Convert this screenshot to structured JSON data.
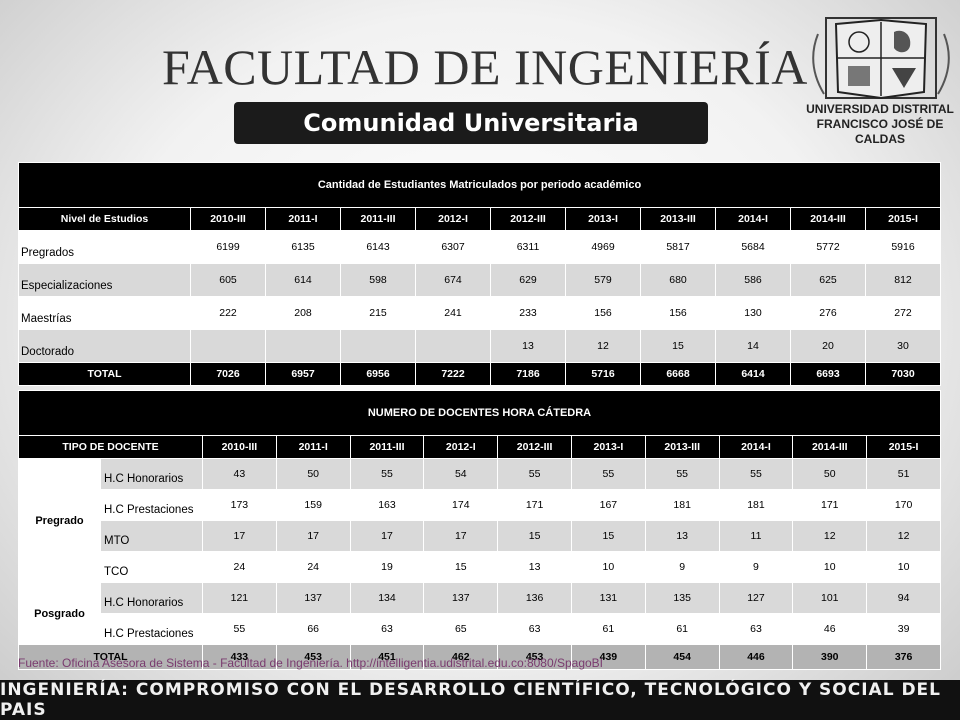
{
  "header": {
    "title": "FACULTAD DE INGENIERÍA",
    "subtitle": "Comunidad Universitaria",
    "logo_line1": "UNIVERSIDAD DISTRITAL",
    "logo_line2": "FRANCISCO JOSÉ DE CALDAS"
  },
  "table1": {
    "caption": "Cantidad de Estudiantes Matriculados por periodo académico",
    "corner_label": "Nivel de Estudios",
    "columns": [
      "2010-III",
      "2011-I",
      "2011-III",
      "2012-I",
      "2012-III",
      "2013-I",
      "2013-III",
      "2014-I",
      "2014-III",
      "2015-I"
    ],
    "rows": [
      {
        "label": "Pregrados",
        "values": [
          "6199",
          "6135",
          "6143",
          "6307",
          "6311",
          "4969",
          "5817",
          "5684",
          "5772",
          "5916"
        ]
      },
      {
        "label": "Especializaciones",
        "values": [
          "605",
          "614",
          "598",
          "674",
          "629",
          "579",
          "680",
          "586",
          "625",
          "812"
        ]
      },
      {
        "label": "Maestrías",
        "values": [
          "222",
          "208",
          "215",
          "241",
          "233",
          "156",
          "156",
          "130",
          "276",
          "272"
        ]
      },
      {
        "label": "Doctorado",
        "values": [
          "",
          "",
          "",
          "",
          "13",
          "12",
          "15",
          "14",
          "20",
          "30"
        ]
      }
    ],
    "total": {
      "label": "TOTAL",
      "values": [
        "7026",
        "6957",
        "6956",
        "7222",
        "7186",
        "5716",
        "6668",
        "6414",
        "6693",
        "7030"
      ]
    }
  },
  "table2": {
    "caption": "NUMERO DE DOCENTES HORA CÁTEDRA",
    "corner_label": "TIPO DE DOCENTE",
    "columns": [
      "2010-III",
      "2011-I",
      "2011-III",
      "2012-I",
      "2012-III",
      "2013-I",
      "2013-III",
      "2014-I",
      "2014-III",
      "2015-I"
    ],
    "groups": [
      {
        "name": "Pregrado",
        "rows": [
          {
            "label": "H.C Honorarios",
            "values": [
              "43",
              "50",
              "55",
              "54",
              "55",
              "55",
              "55",
              "55",
              "50",
              "51"
            ]
          },
          {
            "label": "H.C Prestaciones",
            "values": [
              "173",
              "159",
              "163",
              "174",
              "171",
              "167",
              "181",
              "181",
              "171",
              "170"
            ]
          },
          {
            "label": "MTO",
            "values": [
              "17",
              "17",
              "17",
              "17",
              "15",
              "15",
              "13",
              "11",
              "12",
              "12"
            ]
          },
          {
            "label": "TCO",
            "values": [
              "24",
              "24",
              "19",
              "15",
              "13",
              "10",
              "9",
              "9",
              "10",
              "10"
            ]
          }
        ]
      },
      {
        "name": "Posgrado",
        "rows": [
          {
            "label": "H.C Honorarios",
            "values": [
              "121",
              "137",
              "134",
              "137",
              "136",
              "131",
              "135",
              "127",
              "101",
              "94"
            ]
          },
          {
            "label": "H.C Prestaciones",
            "values": [
              "55",
              "66",
              "63",
              "65",
              "63",
              "61",
              "61",
              "63",
              "46",
              "39"
            ]
          }
        ]
      }
    ],
    "total": {
      "label": "TOTAL",
      "values": [
        "433",
        "453",
        "451",
        "462",
        "453",
        "439",
        "454",
        "446",
        "390",
        "376"
      ]
    }
  },
  "source": "Fuente: Oficina Asesora de Sistema - Facultad de Ingeniería. http://intelligentia.udistrital.edu.co:8080/SpagoBI",
  "footer": "INGENIERÍA: COMPROMISO CON EL DESARROLLO CIENTÍFICO, TECNOLÓGICO Y SOCIAL DEL PAIS"
}
